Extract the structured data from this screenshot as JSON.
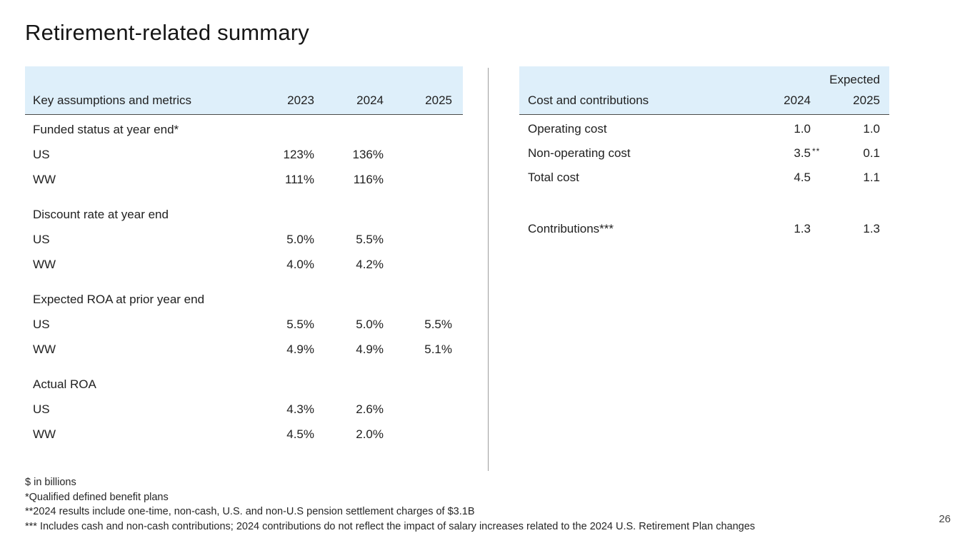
{
  "slide": {
    "title": "Retirement-related summary",
    "page_number": "26"
  },
  "colors": {
    "header_bg": "#deeffa",
    "header_border": "#4a4a4a",
    "divider": "#9e9e9e",
    "text": "#212121"
  },
  "left_table": {
    "header": {
      "label": "Key assumptions and metrics",
      "columns": [
        "2023",
        "2024",
        "2025"
      ]
    },
    "sections": [
      {
        "heading": "Funded status at year end*",
        "rows": [
          {
            "label": "US",
            "values": [
              "123%",
              "136%",
              ""
            ]
          },
          {
            "label": "WW",
            "values": [
              "111%",
              "116%",
              ""
            ]
          }
        ]
      },
      {
        "heading": "Discount rate at year end",
        "rows": [
          {
            "label": "US",
            "values": [
              "5.0%",
              "5.5%",
              ""
            ]
          },
          {
            "label": "WW",
            "values": [
              "4.0%",
              "4.2%",
              ""
            ]
          }
        ]
      },
      {
        "heading": "Expected ROA at prior year end",
        "rows": [
          {
            "label": "US",
            "values": [
              "5.5%",
              "5.0%",
              "5.5%"
            ]
          },
          {
            "label": "WW",
            "values": [
              "4.9%",
              "4.9%",
              "5.1%"
            ]
          }
        ]
      },
      {
        "heading": "Actual ROA",
        "rows": [
          {
            "label": "US",
            "values": [
              "4.3%",
              "2.6%",
              ""
            ]
          },
          {
            "label": "WW",
            "values": [
              "4.5%",
              "2.0%",
              ""
            ]
          }
        ]
      }
    ]
  },
  "right_table": {
    "header": {
      "label": "Cost and contributions",
      "expected_label": "Expected",
      "columns": [
        "2024",
        "2025"
      ]
    },
    "rows": [
      {
        "label": "Operating cost",
        "values": [
          "1.0",
          "1.0"
        ],
        "note": ""
      },
      {
        "label": "Non-operating cost",
        "values": [
          "3.5",
          "0.1"
        ],
        "note": "**"
      },
      {
        "label": "Total cost",
        "values": [
          "4.5",
          "1.1"
        ],
        "note": ""
      },
      {
        "label": "Contributions***",
        "values": [
          "1.3",
          "1.3"
        ],
        "note": ""
      }
    ]
  },
  "footnotes": {
    "lines": [
      "$ in billions",
      "*Qualified defined benefit plans",
      "**2024 results include one-time, non-cash, U.S. and non-U.S pension settlement charges of $3.1B",
      "*** Includes cash and non-cash contributions; 2024 contributions do not reflect the impact of salary increases related to the 2024 U.S. Retirement Plan changes"
    ]
  }
}
